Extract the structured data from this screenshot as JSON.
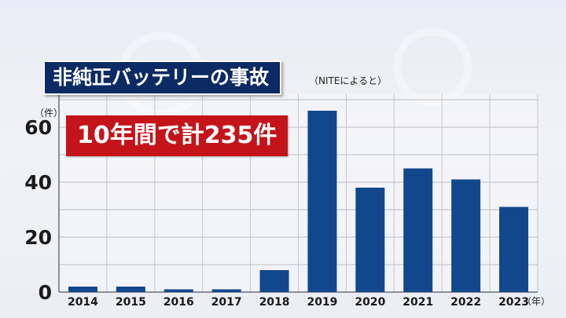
{
  "title": "非純正バッテリーの事故",
  "source_note": "（NITEによると）",
  "callout": "10年間で計235件",
  "chart_data": {
    "type": "bar",
    "categories": [
      "2014",
      "2015",
      "2016",
      "2017",
      "2018",
      "2019",
      "2020",
      "2021",
      "2022",
      "2023"
    ],
    "values": [
      2,
      2,
      1,
      1,
      8,
      66,
      38,
      45,
      41,
      31
    ],
    "ylim": [
      0,
      72
    ],
    "yticks": [
      0,
      20,
      40,
      60
    ],
    "y_unit": "（件）",
    "x_unit": "（年）",
    "grid": true,
    "bar_color": "#11488d"
  }
}
